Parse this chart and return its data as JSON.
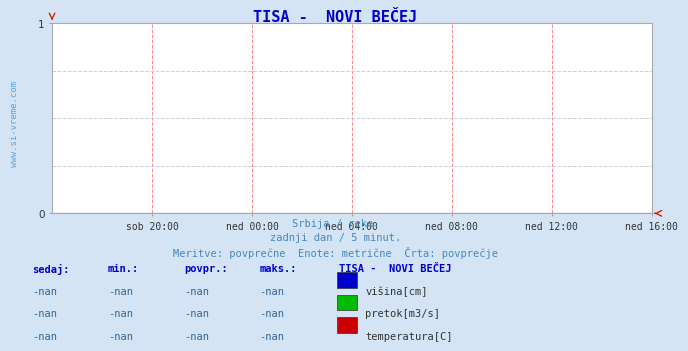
{
  "title": "TISA -  NOVI BEČEJ",
  "title_color": "#0000cc",
  "bg_color": "#d4e4f4",
  "plot_bg_color": "#ffffff",
  "grid_color_v": "#ff8888",
  "grid_color_h": "#ccccdd",
  "axis_color": "#cc2200",
  "spine_color": "#aaaaaa",
  "watermark": "www.si-vreme.com",
  "watermark_color": "#5599cc",
  "xlim": [
    0,
    288
  ],
  "ylim": [
    0,
    1
  ],
  "yticks": [
    0,
    1
  ],
  "xtick_labels": [
    "sob 20:00",
    "ned 00:00",
    "ned 04:00",
    "ned 08:00",
    "ned 12:00",
    "ned 16:00"
  ],
  "xtick_positions": [
    48,
    96,
    144,
    192,
    240,
    288
  ],
  "subtitle_line1": "Srbija / reke.",
  "subtitle_line2": "zadnji dan / 5 minut.",
  "subtitle_line3": "Meritve: povprečne  Enote: metrične  Črta: povprečje",
  "subtitle_color": "#4488bb",
  "table_header_cols": [
    "sedaj:",
    "min.:",
    "povpr.:",
    "maks.:"
  ],
  "table_header_color": "#0000cc",
  "legend_title": "TISA -  NOVI BEČEJ",
  "legend_title_color": "#0000cc",
  "legend_items": [
    {
      "label": "višina[cm]",
      "color": "#0000cc"
    },
    {
      "label": "pretok[m3/s]",
      "color": "#00bb00"
    },
    {
      "label": "temperatura[C]",
      "color": "#cc0000"
    }
  ],
  "table_rows": [
    [
      "-nan",
      "-nan",
      "-nan",
      "-nan"
    ],
    [
      "-nan",
      "-nan",
      "-nan",
      "-nan"
    ],
    [
      "-nan",
      "-nan",
      "-nan",
      "-nan"
    ]
  ],
  "table_data_color": "#336699"
}
